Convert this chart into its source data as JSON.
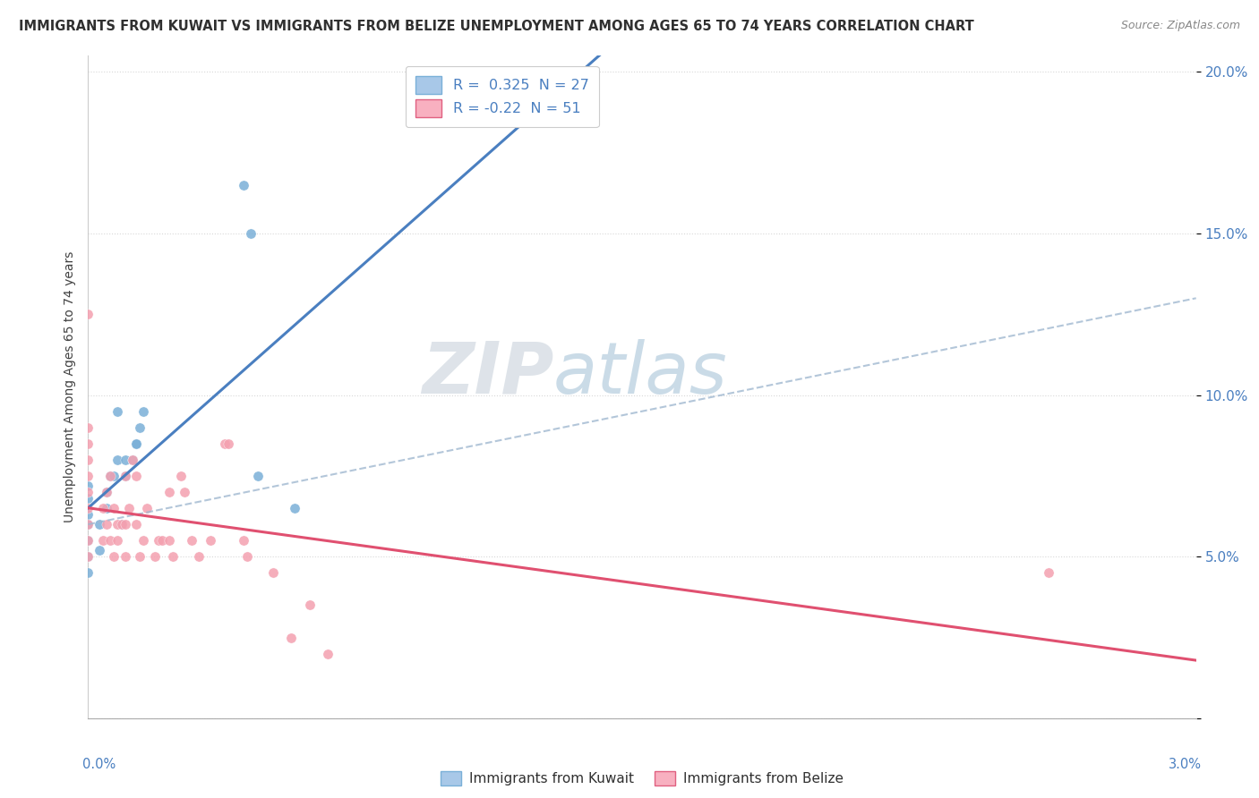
{
  "title": "IMMIGRANTS FROM KUWAIT VS IMMIGRANTS FROM BELIZE UNEMPLOYMENT AMONG AGES 65 TO 74 YEARS CORRELATION CHART",
  "source": "Source: ZipAtlas.com",
  "ylabel": "Unemployment Among Ages 65 to 74 years",
  "watermark_part1": "ZIP",
  "watermark_part2": "atlas",
  "kuwait_x": [
    0.0,
    0.0,
    0.0,
    0.0,
    0.0,
    0.0,
    0.0,
    0.03,
    0.03,
    0.05,
    0.05,
    0.06,
    0.07,
    0.08,
    0.08,
    0.09,
    0.1,
    0.1,
    0.12,
    0.13,
    0.13,
    0.14,
    0.15,
    0.42,
    0.44,
    0.46,
    0.56
  ],
  "kuwait_y": [
    4.5,
    5.0,
    5.5,
    6.0,
    6.3,
    6.8,
    7.2,
    5.2,
    6.0,
    6.5,
    7.0,
    7.5,
    7.5,
    8.0,
    9.5,
    6.0,
    7.5,
    8.0,
    8.0,
    8.5,
    8.5,
    9.0,
    9.5,
    16.5,
    15.0,
    7.5,
    6.5
  ],
  "belize_x": [
    0.0,
    0.0,
    0.0,
    0.0,
    0.0,
    0.0,
    0.0,
    0.0,
    0.0,
    0.0,
    0.04,
    0.04,
    0.05,
    0.05,
    0.06,
    0.06,
    0.07,
    0.07,
    0.08,
    0.08,
    0.09,
    0.1,
    0.1,
    0.1,
    0.11,
    0.12,
    0.13,
    0.13,
    0.14,
    0.15,
    0.16,
    0.18,
    0.19,
    0.2,
    0.22,
    0.22,
    0.23,
    0.25,
    0.26,
    0.28,
    0.3,
    0.33,
    0.37,
    0.38,
    0.42,
    0.43,
    0.5,
    0.55,
    0.6,
    0.65,
    2.6
  ],
  "belize_y": [
    5.0,
    5.5,
    6.0,
    6.5,
    7.0,
    7.5,
    8.0,
    8.5,
    9.0,
    12.5,
    5.5,
    6.5,
    6.0,
    7.0,
    5.5,
    7.5,
    5.0,
    6.5,
    5.5,
    6.0,
    6.0,
    5.0,
    6.0,
    7.5,
    6.5,
    8.0,
    6.0,
    7.5,
    5.0,
    5.5,
    6.5,
    5.0,
    5.5,
    5.5,
    5.5,
    7.0,
    5.0,
    7.5,
    7.0,
    5.5,
    5.0,
    5.5,
    8.5,
    8.5,
    5.5,
    5.0,
    4.5,
    2.5,
    3.5,
    2.0,
    4.5
  ],
  "kuwait_color": "#7ab0d8",
  "belize_color": "#f4a0b0",
  "kuwait_line_color": "#4a7fc0",
  "belize_line_color": "#e05070",
  "xlim": [
    0.0,
    3.0
  ],
  "ylim": [
    0.0,
    20.5
  ],
  "yticks": [
    0.0,
    5.0,
    10.0,
    15.0,
    20.0
  ],
  "ytick_labels": [
    "",
    "5.0%",
    "10.0%",
    "15.0%",
    "20.0%"
  ],
  "background_color": "#ffffff",
  "grid_color": "#d8d8d8",
  "title_fontsize": 11,
  "axis_fontsize": 10,
  "R_kuwait": 0.325,
  "N_kuwait": 27,
  "R_belize": -0.22,
  "N_belize": 51
}
